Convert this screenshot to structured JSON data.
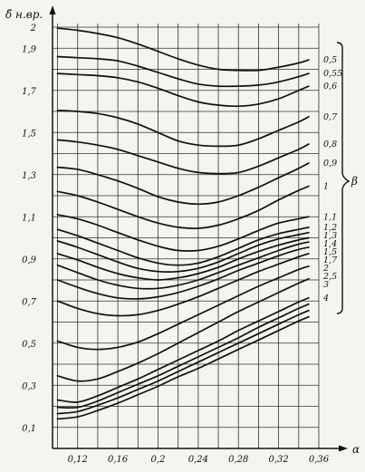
{
  "chart_data": {
    "type": "line",
    "ylabel": "δ̂ н.вр.",
    "xlabel": "α",
    "legend_title": "β",
    "xlim": [
      0.095,
      0.36
    ],
    "ylim": [
      0.0,
      2.0
    ],
    "x_ticks": [
      "0,12",
      "0,16",
      "0,2",
      "0,24",
      "0,28",
      "0,32",
      "0,36"
    ],
    "y_ticks": [
      "0,1",
      "0,3",
      "0,5",
      "0,7",
      "0,9",
      "1,1",
      "1,3",
      "1,5",
      "1,7",
      "1,9",
      "2"
    ],
    "x": [
      0.1,
      0.12,
      0.14,
      0.16,
      0.18,
      0.2,
      0.22,
      0.24,
      0.26,
      0.28,
      0.3,
      0.32,
      0.34,
      0.35
    ],
    "series": [
      {
        "name": "0,5",
        "values": [
          1.995,
          1.985,
          1.97,
          1.95,
          1.92,
          1.885,
          1.85,
          1.82,
          1.8,
          1.795,
          1.795,
          1.81,
          1.83,
          1.845
        ]
      },
      {
        "name": "0,55",
        "values": [
          1.86,
          1.855,
          1.85,
          1.84,
          1.815,
          1.785,
          1.755,
          1.73,
          1.72,
          1.72,
          1.725,
          1.74,
          1.765,
          1.78
        ]
      },
      {
        "name": "0,6",
        "values": [
          1.78,
          1.775,
          1.77,
          1.76,
          1.74,
          1.71,
          1.675,
          1.645,
          1.63,
          1.625,
          1.635,
          1.66,
          1.7,
          1.72
        ]
      },
      {
        "name": "0,7",
        "values": [
          1.605,
          1.6,
          1.59,
          1.57,
          1.54,
          1.5,
          1.46,
          1.44,
          1.435,
          1.44,
          1.47,
          1.51,
          1.55,
          1.575
        ]
      },
      {
        "name": "0,8",
        "values": [
          1.465,
          1.455,
          1.44,
          1.42,
          1.39,
          1.36,
          1.33,
          1.31,
          1.305,
          1.31,
          1.34,
          1.38,
          1.42,
          1.445
        ]
      },
      {
        "name": "0,9",
        "values": [
          1.335,
          1.325,
          1.3,
          1.27,
          1.235,
          1.195,
          1.17,
          1.16,
          1.17,
          1.2,
          1.24,
          1.285,
          1.33,
          1.355
        ]
      },
      {
        "name": "1",
        "values": [
          1.22,
          1.2,
          1.17,
          1.135,
          1.1,
          1.07,
          1.05,
          1.045,
          1.06,
          1.09,
          1.13,
          1.18,
          1.225,
          1.245
        ]
      },
      {
        "name": "1,1",
        "values": [
          1.11,
          1.09,
          1.06,
          1.025,
          0.99,
          0.96,
          0.94,
          0.94,
          0.96,
          0.995,
          1.035,
          1.07,
          1.09,
          1.1
        ]
      },
      {
        "name": "1,2",
        "values": [
          1.04,
          1.01,
          0.975,
          0.94,
          0.905,
          0.88,
          0.87,
          0.88,
          0.91,
          0.95,
          0.99,
          1.02,
          1.04,
          1.05
        ]
      },
      {
        "name": "1,3",
        "values": [
          0.985,
          0.955,
          0.92,
          0.885,
          0.855,
          0.84,
          0.84,
          0.855,
          0.885,
          0.925,
          0.965,
          0.995,
          1.015,
          1.025
        ]
      },
      {
        "name": "1,4",
        "values": [
          0.925,
          0.895,
          0.86,
          0.83,
          0.81,
          0.8,
          0.81,
          0.83,
          0.86,
          0.9,
          0.935,
          0.965,
          0.99,
          1.0
        ]
      },
      {
        "name": "1,5",
        "values": [
          0.87,
          0.835,
          0.8,
          0.775,
          0.76,
          0.76,
          0.775,
          0.8,
          0.835,
          0.87,
          0.905,
          0.94,
          0.97,
          0.98
        ]
      },
      {
        "name": "1,7",
        "values": [
          0.8,
          0.765,
          0.735,
          0.715,
          0.71,
          0.72,
          0.74,
          0.77,
          0.805,
          0.845,
          0.88,
          0.915,
          0.945,
          0.955
        ]
      },
      {
        "name": "2",
        "values": [
          0.7,
          0.665,
          0.64,
          0.63,
          0.635,
          0.655,
          0.685,
          0.72,
          0.76,
          0.8,
          0.84,
          0.875,
          0.91,
          0.925
        ]
      },
      {
        "name": "2,5",
        "values": [
          0.51,
          0.48,
          0.47,
          0.48,
          0.505,
          0.545,
          0.59,
          0.635,
          0.68,
          0.725,
          0.77,
          0.81,
          0.85,
          0.865
        ]
      },
      {
        "name": "3",
        "values": [
          0.345,
          0.32,
          0.33,
          0.365,
          0.405,
          0.45,
          0.5,
          0.55,
          0.6,
          0.65,
          0.695,
          0.74,
          0.785,
          0.805
        ]
      },
      {
        "name": "4",
        "values": [
          0.23,
          0.22,
          0.25,
          0.29,
          0.33,
          0.375,
          0.42,
          0.465,
          0.51,
          0.56,
          0.605,
          0.65,
          0.695,
          0.715
        ]
      },
      {
        "name": "",
        "values": [
          0.195,
          0.195,
          0.225,
          0.265,
          0.305,
          0.345,
          0.39,
          0.435,
          0.48,
          0.525,
          0.575,
          0.62,
          0.665,
          0.685
        ]
      },
      {
        "name": "",
        "values": [
          0.165,
          0.175,
          0.205,
          0.24,
          0.28,
          0.32,
          0.365,
          0.41,
          0.455,
          0.5,
          0.545,
          0.59,
          0.635,
          0.655
        ]
      },
      {
        "name": "",
        "values": [
          0.14,
          0.15,
          0.18,
          0.215,
          0.255,
          0.295,
          0.34,
          0.38,
          0.425,
          0.47,
          0.515,
          0.56,
          0.605,
          0.625
        ]
      }
    ],
    "grid": true,
    "legend": "right, bracketed"
  }
}
